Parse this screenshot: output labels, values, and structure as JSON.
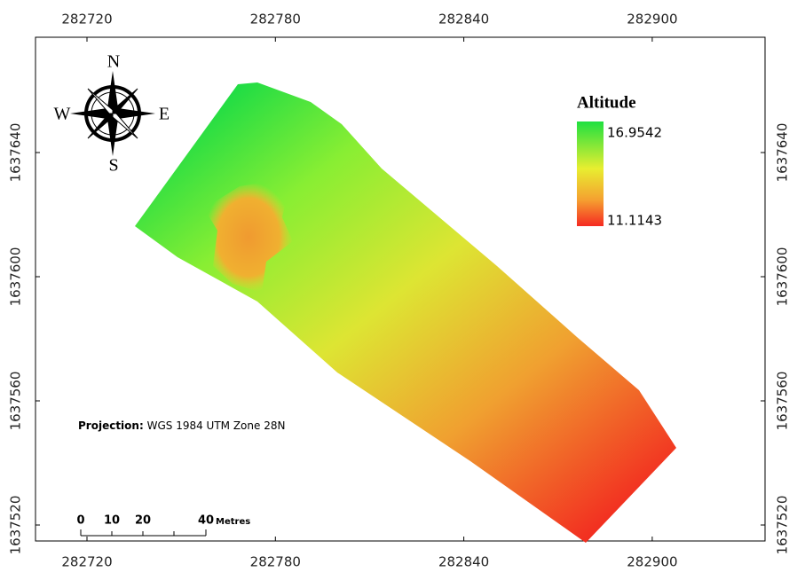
{
  "map": {
    "xticks": [
      282720,
      282780,
      282840,
      282900
    ],
    "yticks": [
      1637640,
      1637600,
      1637560,
      1637520
    ],
    "compass": {
      "north": "N",
      "south": "S",
      "east": "E",
      "west": "W"
    },
    "legend": {
      "title": "Altitude",
      "high": "16.9542",
      "low": "11.1143"
    },
    "projection": {
      "label": "Projection:",
      "value": "WGS 1984 UTM Zone 28N"
    },
    "scale_bar": {
      "ticks": [
        "0",
        "10",
        "20",
        "40"
      ],
      "unit": "Metres"
    }
  }
}
